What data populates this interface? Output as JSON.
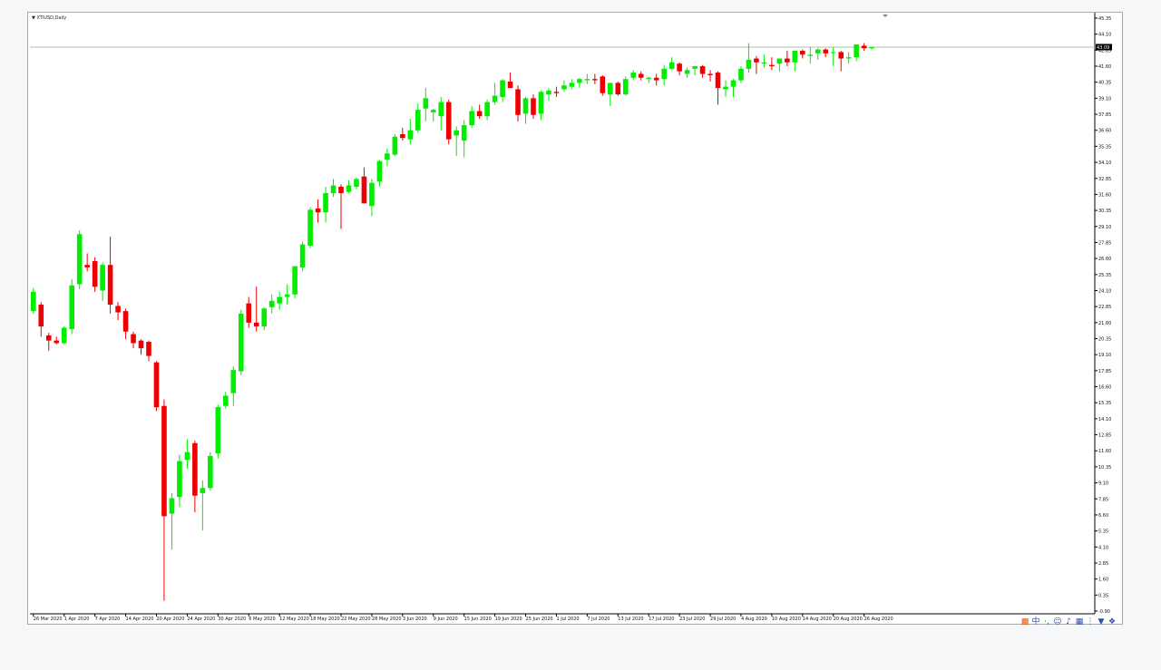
{
  "window": {
    "symbol_label": "XTIUSD,Daily"
  },
  "colors": {
    "bull": "#00ee00",
    "bear": "#ee0000",
    "axis": "#000000",
    "price_line": "#a8c4a8",
    "price_badge_bg": "#000000",
    "price_badge_text": "#ffffff"
  },
  "tray_icons": [
    "s-logo-icon",
    "chinese-ime-icon",
    "punctuation-icon",
    "emoji-icon",
    "microphone-icon",
    "keyboard-icon",
    "settings-icon",
    "shirt-icon",
    "toolbox-icon"
  ],
  "chart_data": {
    "type": "candlestick",
    "symbol": "XTIUSD,Daily",
    "current_price": "43.09",
    "ylim": [
      -0.9,
      45.35
    ],
    "y_ticks": [
      "45.35",
      "44.10",
      "42.85",
      "41.60",
      "40.35",
      "39.10",
      "37.85",
      "36.60",
      "35.35",
      "34.10",
      "32.85",
      "31.60",
      "30.35",
      "29.10",
      "27.85",
      "26.60",
      "25.35",
      "24.10",
      "22.85",
      "21.60",
      "20.35",
      "19.10",
      "17.85",
      "16.60",
      "15.35",
      "14.10",
      "12.85",
      "11.60",
      "10.35",
      "9.10",
      "7.85",
      "6.60",
      "5.35",
      "4.10",
      "2.85",
      "1.60",
      "0.35",
      "-0.90"
    ],
    "x_ticks": [
      {
        "label": "26 Mar 2020",
        "index": 0
      },
      {
        "label": "1 Apr 2020",
        "index": 4
      },
      {
        "label": "7 Apr 2020",
        "index": 8
      },
      {
        "label": "14 Apr 2020",
        "index": 12
      },
      {
        "label": "20 Apr 2020",
        "index": 16
      },
      {
        "label": "24 Apr 2020",
        "index": 20
      },
      {
        "label": "30 Apr 2020",
        "index": 24
      },
      {
        "label": "6 May 2020",
        "index": 28
      },
      {
        "label": "12 May 2020",
        "index": 32
      },
      {
        "label": "18 May 2020",
        "index": 36
      },
      {
        "label": "22 May 2020",
        "index": 40
      },
      {
        "label": "28 May 2020",
        "index": 44
      },
      {
        "label": "3 Jun 2020",
        "index": 48
      },
      {
        "label": "9 Jun 2020",
        "index": 52
      },
      {
        "label": "15 Jun 2020",
        "index": 56
      },
      {
        "label": "19 Jun 2020",
        "index": 60
      },
      {
        "label": "25 Jun 2020",
        "index": 64
      },
      {
        "label": "1 Jul 2020",
        "index": 68
      },
      {
        "label": "7 Jul 2020",
        "index": 72
      },
      {
        "label": "13 Jul 2020",
        "index": 76
      },
      {
        "label": "17 Jul 2020",
        "index": 80
      },
      {
        "label": "23 Jul 2020",
        "index": 84
      },
      {
        "label": "29 Jul 2020",
        "index": 88
      },
      {
        "label": "4 Aug 2020",
        "index": 92
      },
      {
        "label": "10 Aug 2020",
        "index": 96
      },
      {
        "label": "14 Aug 2020",
        "index": 100
      },
      {
        "label": "20 Aug 2020",
        "index": 104
      },
      {
        "label": "26 Aug 2020",
        "index": 108
      }
    ],
    "ohlc": [
      [
        22.5,
        24.3,
        22.3,
        24.0
      ],
      [
        23.0,
        23.2,
        20.5,
        21.3
      ],
      [
        20.6,
        20.8,
        19.4,
        20.2
      ],
      [
        20.2,
        20.5,
        19.9,
        20.0
      ],
      [
        20.0,
        21.3,
        19.9,
        21.2
      ],
      [
        21.1,
        25.0,
        20.7,
        24.5
      ],
      [
        24.6,
        28.8,
        24.2,
        28.5
      ],
      [
        26.1,
        27.0,
        25.6,
        25.9
      ],
      [
        26.4,
        26.7,
        24.0,
        24.4
      ],
      [
        24.1,
        26.3,
        23.3,
        26.1
      ],
      [
        26.1,
        28.3,
        22.3,
        23.0
      ],
      [
        22.9,
        23.2,
        21.8,
        22.4
      ],
      [
        22.5,
        22.7,
        20.3,
        20.9
      ],
      [
        20.7,
        20.9,
        19.6,
        20.0
      ],
      [
        20.2,
        20.3,
        19.1,
        19.6
      ],
      [
        20.1,
        20.2,
        18.6,
        19.0
      ],
      [
        18.5,
        18.6,
        14.7,
        15.0
      ],
      [
        15.1,
        15.6,
        -0.1,
        6.5
      ],
      [
        6.7,
        8.3,
        3.9,
        7.9
      ],
      [
        8.0,
        11.3,
        7.2,
        10.8
      ],
      [
        10.9,
        12.5,
        10.2,
        11.5
      ],
      [
        12.2,
        12.4,
        6.8,
        8.1
      ],
      [
        8.3,
        9.3,
        5.4,
        8.7
      ],
      [
        8.7,
        11.5,
        8.5,
        11.2
      ],
      [
        11.4,
        15.2,
        11.0,
        15.0
      ],
      [
        15.1,
        16.2,
        14.9,
        15.9
      ],
      [
        16.1,
        18.2,
        15.1,
        17.9
      ],
      [
        17.8,
        22.6,
        17.5,
        22.3
      ],
      [
        23.1,
        23.6,
        21.2,
        21.6
      ],
      [
        21.6,
        24.4,
        20.9,
        21.3
      ],
      [
        21.3,
        22.8,
        21.0,
        22.7
      ],
      [
        22.8,
        23.8,
        22.3,
        23.3
      ],
      [
        23.1,
        24.0,
        22.6,
        23.6
      ],
      [
        23.6,
        24.6,
        23.0,
        23.8
      ],
      [
        23.8,
        26.0,
        23.5,
        26.0
      ],
      [
        25.9,
        27.9,
        25.6,
        27.7
      ],
      [
        27.6,
        30.6,
        27.4,
        30.4
      ],
      [
        30.5,
        31.2,
        29.4,
        30.2
      ],
      [
        30.2,
        32.2,
        29.4,
        31.7
      ],
      [
        31.7,
        32.8,
        31.4,
        32.3
      ],
      [
        32.2,
        32.4,
        28.9,
        31.7
      ],
      [
        31.8,
        32.7,
        31.7,
        32.3
      ],
      [
        32.2,
        32.9,
        32.0,
        32.8
      ],
      [
        33.0,
        33.7,
        30.9,
        30.9
      ],
      [
        30.7,
        32.8,
        29.9,
        32.5
      ],
      [
        32.6,
        34.3,
        32.2,
        34.2
      ],
      [
        34.3,
        35.2,
        33.8,
        34.8
      ],
      [
        34.7,
        36.3,
        34.6,
        36.1
      ],
      [
        36.3,
        36.8,
        35.8,
        36.0
      ],
      [
        35.9,
        37.5,
        35.5,
        36.6
      ],
      [
        36.6,
        38.7,
        36.4,
        38.2
      ],
      [
        38.3,
        39.9,
        37.3,
        39.1
      ],
      [
        38.0,
        38.3,
        37.3,
        38.2
      ],
      [
        37.7,
        39.2,
        36.6,
        38.8
      ],
      [
        38.8,
        39.0,
        35.5,
        35.9
      ],
      [
        36.2,
        36.9,
        34.6,
        36.6
      ],
      [
        35.8,
        37.4,
        34.5,
        37.0
      ],
      [
        37.0,
        38.5,
        36.8,
        38.1
      ],
      [
        38.1,
        38.6,
        37.5,
        37.7
      ],
      [
        37.7,
        39.0,
        37.4,
        38.8
      ],
      [
        38.8,
        40.3,
        38.6,
        39.3
      ],
      [
        39.2,
        40.6,
        38.8,
        40.5
      ],
      [
        40.4,
        41.1,
        39.9,
        39.9
      ],
      [
        39.8,
        40.1,
        37.3,
        37.8
      ],
      [
        37.9,
        39.2,
        37.1,
        39.1
      ],
      [
        39.1,
        39.4,
        37.5,
        37.8
      ],
      [
        37.9,
        39.7,
        37.4,
        39.6
      ],
      [
        39.4,
        39.9,
        38.9,
        39.7
      ],
      [
        39.6,
        40.0,
        39.2,
        39.5
      ],
      [
        39.8,
        40.5,
        39.6,
        40.1
      ],
      [
        40.0,
        40.6,
        39.8,
        40.3
      ],
      [
        40.3,
        40.7,
        39.9,
        40.6
      ],
      [
        40.5,
        41.0,
        40.2,
        40.6
      ],
      [
        40.6,
        41.0,
        40.2,
        40.5
      ],
      [
        40.8,
        40.9,
        39.3,
        39.5
      ],
      [
        39.4,
        40.2,
        38.5,
        40.3
      ],
      [
        40.3,
        40.4,
        39.3,
        39.4
      ],
      [
        39.4,
        40.8,
        39.3,
        40.6
      ],
      [
        40.7,
        41.3,
        40.5,
        41.1
      ],
      [
        41.0,
        41.2,
        40.5,
        40.7
      ],
      [
        40.6,
        40.8,
        40.3,
        40.7
      ],
      [
        40.7,
        41.0,
        40.1,
        40.5
      ],
      [
        40.6,
        41.7,
        40.1,
        41.4
      ],
      [
        41.4,
        42.3,
        41.3,
        41.9
      ],
      [
        41.8,
        41.9,
        40.9,
        41.2
      ],
      [
        41.0,
        41.5,
        40.7,
        41.3
      ],
      [
        41.4,
        41.6,
        40.9,
        41.6
      ],
      [
        41.6,
        41.7,
        40.7,
        41.0
      ],
      [
        41.0,
        41.3,
        40.4,
        40.9
      ],
      [
        41.1,
        41.2,
        38.6,
        39.9
      ],
      [
        39.8,
        40.5,
        39.2,
        40.0
      ],
      [
        40.0,
        40.6,
        39.2,
        40.5
      ],
      [
        40.5,
        41.6,
        40.3,
        41.4
      ],
      [
        41.4,
        43.4,
        41.1,
        42.1
      ],
      [
        42.2,
        42.4,
        41.0,
        41.9
      ],
      [
        41.8,
        42.5,
        41.5,
        41.9
      ],
      [
        41.7,
        42.3,
        41.3,
        41.6
      ],
      [
        41.8,
        42.0,
        41.2,
        42.2
      ],
      [
        42.2,
        42.8,
        41.6,
        41.9
      ],
      [
        41.9,
        42.7,
        41.2,
        42.8
      ],
      [
        42.8,
        42.9,
        42.2,
        42.5
      ],
      [
        42.4,
        43.1,
        41.8,
        42.5
      ],
      [
        42.6,
        43.0,
        42.1,
        42.9
      ],
      [
        42.9,
        43.0,
        42.3,
        42.6
      ],
      [
        42.7,
        43.1,
        41.6,
        42.7
      ],
      [
        42.7,
        42.8,
        41.2,
        42.2
      ],
      [
        42.2,
        42.7,
        41.8,
        42.3
      ],
      [
        42.3,
        43.3,
        42.0,
        43.3
      ],
      [
        43.2,
        43.4,
        42.8,
        43.0
      ],
      [
        43.0,
        43.1,
        42.9,
        43.09
      ]
    ]
  }
}
